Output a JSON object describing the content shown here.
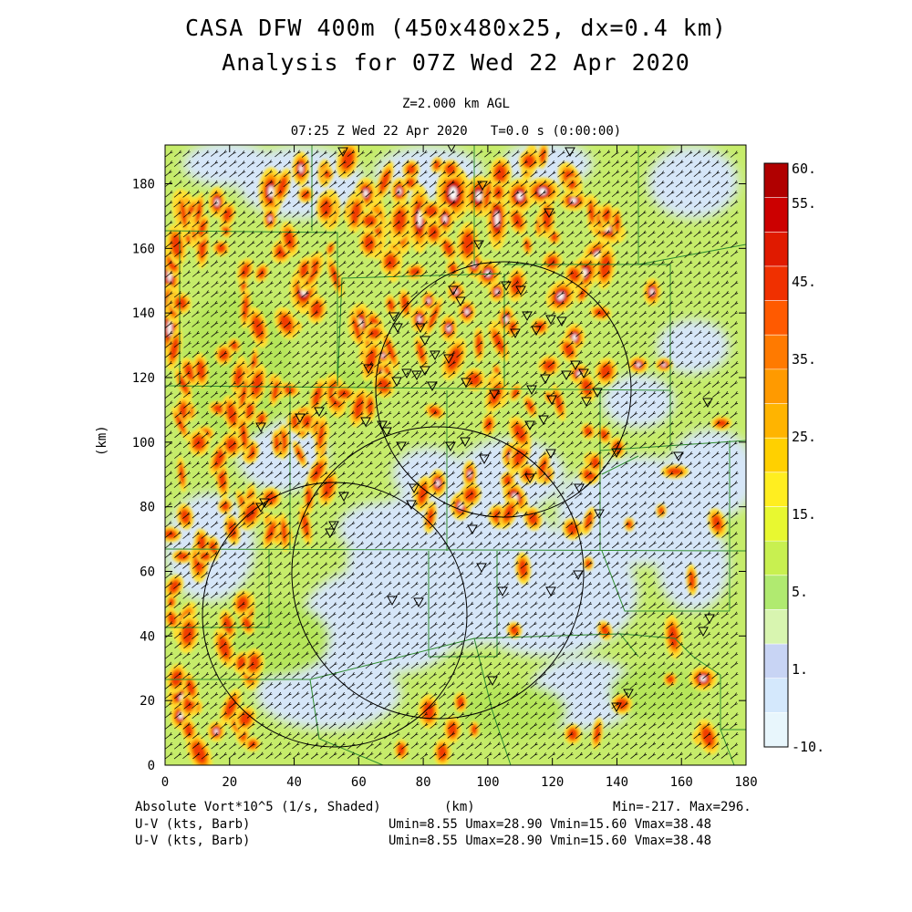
{
  "title_line1": "CASA DFW 400m (450x480x25, dx=0.4 km)",
  "title_line2": "Analysis for 07Z Wed 22 Apr 2020",
  "level": "Z=2.000 km AGL",
  "time_line": "07:25 Z Wed 22 Apr 2020   T=0.0 s (0:00:00)",
  "y_axis_label": "(km)",
  "x_axis_label": "(km)",
  "x_ticks": [
    "0",
    "20",
    "40",
    "60",
    "80",
    "100",
    "120",
    "140",
    "160",
    "180"
  ],
  "y_ticks": [
    "0",
    "20",
    "40",
    "60",
    "80",
    "100",
    "120",
    "140",
    "160",
    "180"
  ],
  "colorbar": {
    "labels": [
      {
        "text": "60.",
        "value": 60
      },
      {
        "text": "55.",
        "value": 55
      },
      {
        "text": "45.",
        "value": 45
      },
      {
        "text": "35.",
        "value": 35
      },
      {
        "text": "25.",
        "value": 25
      },
      {
        "text": "15.",
        "value": 15
      },
      {
        "text": "5.",
        "value": 5
      },
      {
        "text": "1.",
        "value": 1
      },
      {
        "text": "-10.",
        "value": -10
      }
    ],
    "colors_top_to_bottom": [
      "#b00000",
      "#cc0000",
      "#e01a00",
      "#f03000",
      "#ff5a00",
      "#ff7a00",
      "#ff9a00",
      "#ffb400",
      "#ffd000",
      "#ffee20",
      "#e8f830",
      "#c8f050",
      "#b0ea70",
      "#d8f5b0",
      "#c8d4f4",
      "#d4e8fc",
      "#e8f6fc"
    ]
  },
  "footer": {
    "field_label": "Absolute Vort*10^5 (1/s, Shaded)",
    "km_label": "(km)",
    "minmax": "Min=-217. Max=296.",
    "barb_label_1": "U-V (kts, Barb)",
    "barb_stats_1": "Umin=8.55 Umax=28.90 Vmin=15.60 Vmax=38.48",
    "barb_label_2": "U-V (kts, Barb)",
    "barb_stats_2": "Umin=8.55 Umax=28.90 Vmin=15.60 Vmax=38.48"
  },
  "colors": {
    "background_green": "#c6ec6a",
    "light_blue": "#d6e6f8",
    "county_lines": "#2e8b2e",
    "frame": "#000000"
  },
  "map_extent": {
    "x": [
      0,
      180
    ],
    "y": [
      0,
      192
    ]
  }
}
